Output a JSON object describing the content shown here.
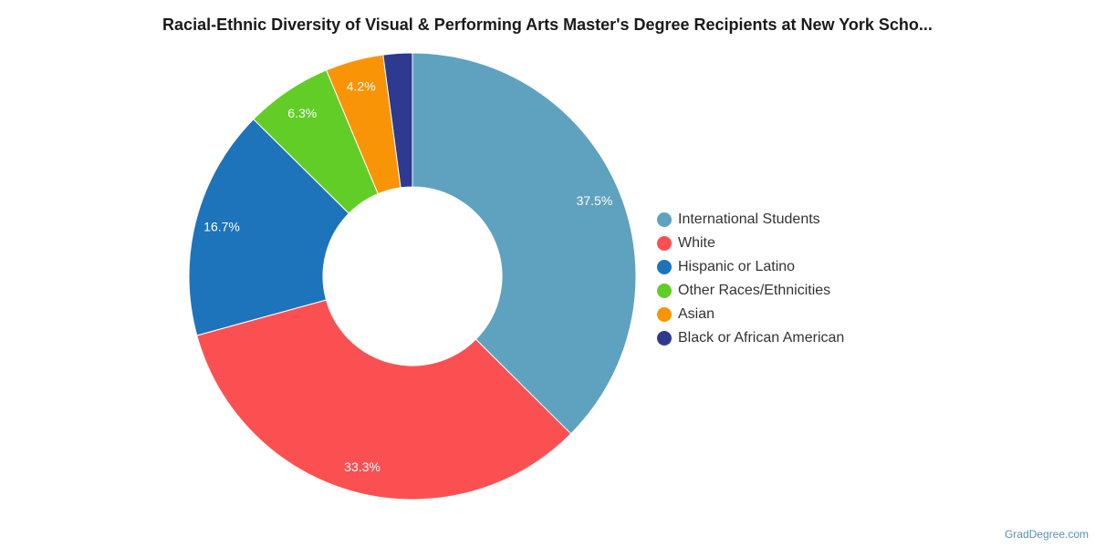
{
  "chart_data": {
    "type": "pie",
    "variant": "donut",
    "title": "Racial-Ethnic Diversity of Visual & Performing Arts Master's Degree Recipients at New York Scho...",
    "legend_position": "right",
    "categories": [
      "International Students",
      "White",
      "Hispanic or Latino",
      "Other Races/Ethnicities",
      "Asian",
      "Black or African American"
    ],
    "values": [
      37.5,
      33.3,
      16.7,
      6.3,
      4.2,
      2.1
    ],
    "labels": [
      "37.5%",
      "33.3%",
      "16.7%",
      "6.3%",
      "4.2%",
      ""
    ],
    "colors": [
      "#5fa2c0",
      "#fb5052",
      "#1e74bb",
      "#62cd26",
      "#f99407",
      "#2e3a8f"
    ]
  },
  "credit": "GradDegree.com"
}
